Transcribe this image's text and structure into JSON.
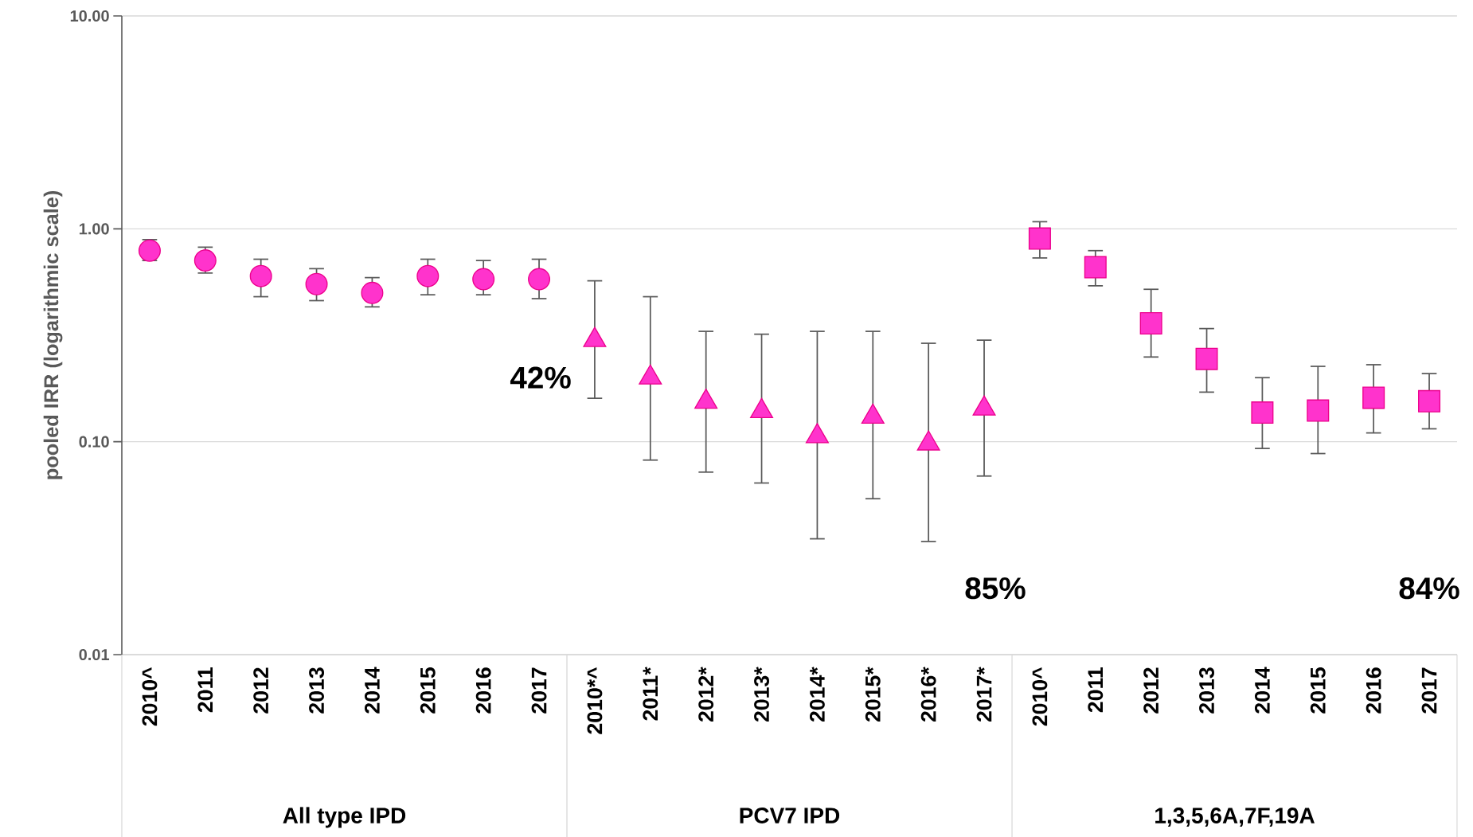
{
  "chart_data": {
    "type": "scatter",
    "ylabel": "pooled IRR (logarithmic scale)",
    "categories": [
      "2010^",
      "2011",
      "2012",
      "2013",
      "2014",
      "2015",
      "2016",
      "2017",
      "2010*^",
      "2011*",
      "2012*",
      "2013*",
      "2014*",
      "2015*",
      "2016*",
      "2017*",
      "2010^",
      "2011",
      "2012",
      "2013",
      "2014",
      "2015",
      "2016",
      "2017"
    ],
    "series": [
      {
        "color": "#ff33cc",
        "marker": "circle",
        "values": [
          0.79,
          0.71,
          0.6,
          0.55,
          0.5,
          0.6,
          0.58,
          0.58,
          null,
          null,
          null,
          null,
          null,
          null,
          null,
          null,
          null,
          null,
          null,
          null,
          null,
          null,
          null,
          null
        ],
        "errors": [
          [
            0.71,
            0.89
          ],
          [
            0.62,
            0.82
          ],
          [
            0.48,
            0.72
          ],
          [
            0.46,
            0.65
          ],
          [
            0.43,
            0.59
          ],
          [
            0.49,
            0.72
          ],
          [
            0.49,
            0.71
          ],
          [
            0.47,
            0.72
          ],
          null,
          null,
          null,
          null,
          null,
          null,
          null,
          null,
          null,
          null,
          null,
          null,
          null,
          null,
          null,
          null
        ]
      },
      {
        "color": "#ff33cc",
        "marker": "triangle",
        "values": [
          null,
          null,
          null,
          null,
          null,
          null,
          null,
          null,
          0.3,
          0.2,
          0.154,
          0.139,
          0.106,
          0.131,
          0.098,
          0.143,
          null,
          null,
          null,
          null,
          null,
          null,
          null,
          null
        ],
        "errors": [
          null,
          null,
          null,
          null,
          null,
          null,
          null,
          null,
          [
            0.16,
            0.57
          ],
          [
            0.082,
            0.48
          ],
          [
            0.072,
            0.33
          ],
          [
            0.064,
            0.32
          ],
          [
            0.035,
            0.33
          ],
          [
            0.054,
            0.33
          ],
          [
            0.034,
            0.29
          ],
          [
            0.069,
            0.3
          ],
          null,
          null,
          null,
          null,
          null,
          null,
          null,
          null
        ]
      },
      {
        "color": "#ff33cc",
        "marker": "square",
        "values": [
          null,
          null,
          null,
          null,
          null,
          null,
          null,
          null,
          null,
          null,
          null,
          null,
          null,
          null,
          null,
          null,
          0.9,
          0.66,
          0.36,
          0.245,
          0.137,
          0.14,
          0.161,
          0.155
        ],
        "errors": [
          null,
          null,
          null,
          null,
          null,
          null,
          null,
          null,
          null,
          null,
          null,
          null,
          null,
          null,
          null,
          null,
          [
            0.73,
            1.08
          ],
          [
            0.54,
            0.79
          ],
          [
            0.25,
            0.52
          ],
          [
            0.171,
            0.34
          ],
          [
            0.093,
            0.2
          ],
          [
            0.088,
            0.226
          ],
          [
            0.11,
            0.23
          ],
          [
            0.115,
            0.209
          ]
        ]
      }
    ],
    "log": true,
    "ylim": [
      0.01,
      10
    ],
    "yticks": [
      {
        "value": 0.01,
        "label": "0.01"
      },
      {
        "value": 0.1,
        "label": "0.10"
      },
      {
        "value": 1,
        "label": "1.00"
      },
      {
        "value": 10,
        "label": "10.00"
      }
    ],
    "grid": "y",
    "annotations": [
      "42%",
      "85%",
      "84%",
      "All type IPD",
      "PCV7 IPD",
      "1,3,5,6A,7F,19A"
    ]
  }
}
